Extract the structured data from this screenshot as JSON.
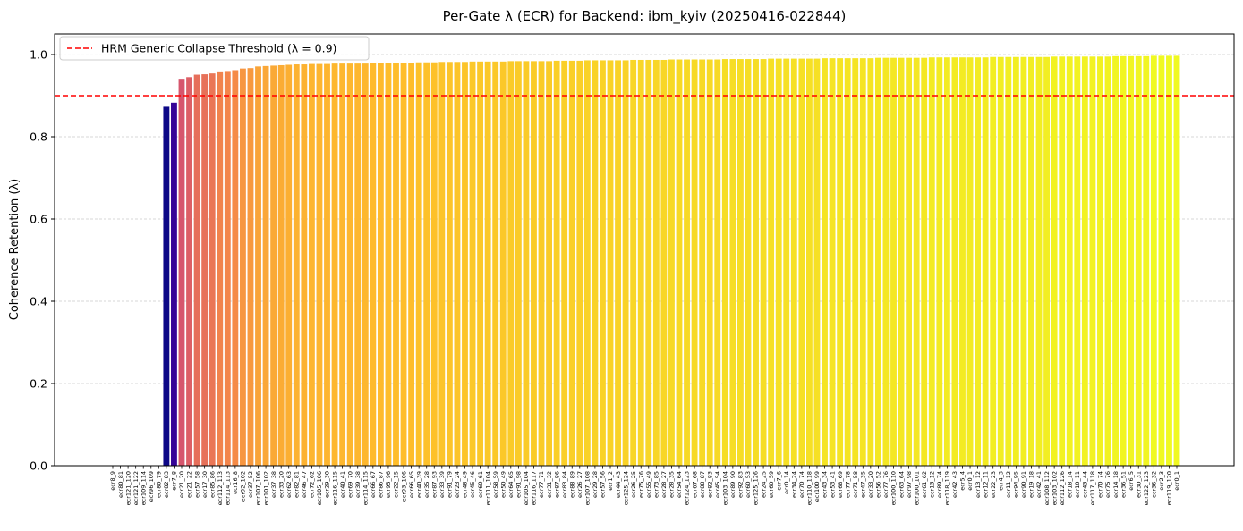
{
  "chart_data": {
    "type": "bar",
    "title": "Per-Gate λ (ECR) for Backend: ibm_kyiv (20250416-022844)",
    "xlabel": "",
    "ylabel": "Coherence Retention (λ)",
    "ylim": [
      0,
      1.05
    ],
    "yticks": [
      0.0,
      0.2,
      0.4,
      0.6,
      0.8,
      1.0
    ],
    "ytick_labels": [
      "0.0",
      "0.2",
      "0.4",
      "0.6",
      "0.8",
      "1.0"
    ],
    "grid": "y-dashed",
    "colormap": "plasma",
    "threshold": {
      "value": 0.9,
      "label": "HRM Generic Collapse Threshold (λ = 0.9)",
      "color": "#ff0000",
      "style": "dashed"
    },
    "legend_placement": "upper-left",
    "categories": [
      "ecr8_9",
      "ecr80_81",
      "ecr121_120",
      "ecr121_122",
      "ecr109_114",
      "ecr96_109",
      "ecr80_79",
      "ecr82_83",
      "ecr7_8",
      "ecr21_20",
      "ecr21_22",
      "ecr57_58",
      "ecr17_30",
      "ecr85_86",
      "ecr112_113",
      "ecr114_113",
      "ecr16_8",
      "ecr92_102",
      "ecr37_52",
      "ecr107_106",
      "ecr101_102",
      "ecr37_38",
      "ecr33_20",
      "ecr62_63",
      "ecr82_81",
      "ecr46_47",
      "ecr72_62",
      "ecr105_106",
      "ecr29_30",
      "ecr116_115",
      "ecr40_41",
      "ecr69_70",
      "ecr39_38",
      "ecr114_115",
      "ecr66_67",
      "ecr86_87",
      "ecr95_96",
      "ecr22_15",
      "ecr93_106",
      "ecr66_65",
      "ecr40_39",
      "ecr35_28",
      "ecr87_93",
      "ecr33_39",
      "ecr91_79",
      "ecr23_24",
      "ecr48_49",
      "ecr45_46",
      "ecr60_61",
      "ecr111_104",
      "ecr58_59",
      "ecr50_49",
      "ecr64_65",
      "ecr91_98",
      "ecr105_104",
      "ecr116_117",
      "ecr77_71",
      "ecr31_32",
      "ecr87_86",
      "ecr83_84",
      "ecr88_89",
      "ecr26_27",
      "ecr107_108",
      "ecr29_28",
      "ecr57_56",
      "ecr1_2",
      "ecr44_43",
      "ecr125_124",
      "ecr26_25",
      "ecr75_76",
      "ecr55_49",
      "ecr73_85",
      "ecr28_27",
      "ecr28_35",
      "ecr54_64",
      "ecr124_123",
      "ecr67_68",
      "ecr88_87",
      "ecr82_83b",
      "ecr45_54",
      "ecr103_104",
      "ecr89_90",
      "ecr92_83",
      "ecr60_53",
      "ecr125_126",
      "ecr24_25",
      "ecr60_59",
      "ecr7_6",
      "ecr0_14",
      "ecr34_24",
      "ecr70_74",
      "ecr110_118",
      "ecr100_99",
      "ecr43_34",
      "ecr53_41",
      "ecr68_69",
      "ecr77_78",
      "ecr71_58",
      "ecr47_35",
      "ecr33_20b",
      "ecr56_52",
      "ecr77_76",
      "ecr100_110",
      "ecr63_64",
      "ecr97_98",
      "ecr100_101",
      "ecr61_62",
      "ecr13_12",
      "ecr89_74",
      "ecr118_119",
      "ecr42_43",
      "ecr5_4",
      "ecr0_1",
      "ecr13_12b",
      "ecr12_11",
      "ecr22_23",
      "ecr4_3",
      "ecr11_12",
      "ecr94_95",
      "ecr90_91",
      "ecr19_18",
      "ecr42_41",
      "ecr108_112",
      "ecr103_102",
      "ecr112_126",
      "ecr18_14",
      "ecr10_11",
      "ecr43_44",
      "ecr117_118",
      "ecr70_74b",
      "ecr75_76b",
      "ecr14_18",
      "ecr36_51",
      "ecr6_5",
      "ecr30_31",
      "ecr122_123",
      "ecr36_32",
      "ecr2_3",
      "ecr119_120",
      "ecr0_1b"
    ],
    "category_labels": [
      "ecr8_9",
      "ecr80_81",
      "ecr121_120",
      "ecr121_122",
      "ecr109_114",
      "ecr96_109",
      "ecr80_79",
      "ecr82_83",
      "ecr7_8",
      "ecr21_20",
      "ecr21_22",
      "ecr57_58",
      "ecr17_30",
      "ecr85_86",
      "ecr112_113",
      "ecr114_113",
      "ecr16_8",
      "ecr92_102",
      "ecr37_52",
      "ecr107_106",
      "ecr101_102",
      "ecr37_38",
      "ecr33_20",
      "ecr62_63",
      "ecr82_81",
      "ecr46_47",
      "ecr72_62",
      "ecr105_106",
      "ecr29_30",
      "ecr116_115",
      "ecr40_41",
      "ecr69_70",
      "ecr39_38",
      "ecr114_115",
      "ecr66_67",
      "ecr86_87",
      "ecr95_96",
      "ecr22_15",
      "ecr93_106",
      "ecr66_65",
      "ecr40_39",
      "ecr35_28",
      "ecr87_93",
      "ecr33_39",
      "ecr91_79",
      "ecr23_24",
      "ecr48_49",
      "ecr45_46",
      "ecr60_61",
      "ecr111_104",
      "ecr58_59",
      "ecr50_49",
      "ecr64_65",
      "ecr91_98",
      "ecr105_104",
      "ecr116_117",
      "ecr77_71",
      "ecr31_32",
      "ecr87_86",
      "ecr83_84",
      "ecr88_89",
      "ecr26_27",
      "ecr107_108",
      "ecr29_28",
      "ecr57_56",
      "ecr1_2",
      "ecr44_43",
      "ecr125_124",
      "ecr26_25",
      "ecr75_76",
      "ecr55_49",
      "ecr73_85",
      "ecr28_27",
      "ecr28_35",
      "ecr54_64",
      "ecr124_123",
      "ecr67_68",
      "ecr88_87",
      "ecr82_83",
      "ecr45_54",
      "ecr103_104",
      "ecr89_90",
      "ecr92_83",
      "ecr60_53",
      "ecr125_126",
      "ecr24_25",
      "ecr60_59",
      "ecr7_6",
      "ecr0_14",
      "ecr34_24",
      "ecr70_74",
      "ecr110_118",
      "ecr100_99",
      "ecr43_34",
      "ecr53_41",
      "ecr68_69",
      "ecr77_78",
      "ecr71_58",
      "ecr47_35",
      "ecr33_20",
      "ecr56_52",
      "ecr77_76",
      "ecr100_110",
      "ecr63_64",
      "ecr97_98",
      "ecr100_101",
      "ecr61_62",
      "ecr13_12",
      "ecr89_74",
      "ecr118_119",
      "ecr42_43",
      "ecr5_4",
      "ecr0_1",
      "ecr13_12",
      "ecr12_11",
      "ecr22_23",
      "ecr4_3",
      "ecr11_12",
      "ecr94_95",
      "ecr90_91",
      "ecr19_18",
      "ecr42_41",
      "ecr108_112",
      "ecr103_102",
      "ecr112_126",
      "ecr18_14",
      "ecr10_11",
      "ecr43_44",
      "ecr117_118",
      "ecr70_74",
      "ecr75_76",
      "ecr14_18",
      "ecr36_51",
      "ecr6_5",
      "ecr30_31",
      "ecr122_123",
      "ecr36_32",
      "ecr2_3",
      "ecr119_120",
      "ecr0_1"
    ],
    "values": [
      0,
      0,
      0,
      0,
      0,
      0,
      0,
      0.873,
      0.883,
      0.941,
      0.945,
      0.951,
      0.952,
      0.954,
      0.959,
      0.96,
      0.962,
      0.966,
      0.967,
      0.971,
      0.972,
      0.973,
      0.974,
      0.975,
      0.976,
      0.976,
      0.977,
      0.977,
      0.977,
      0.978,
      0.978,
      0.978,
      0.978,
      0.978,
      0.979,
      0.979,
      0.98,
      0.98,
      0.98,
      0.98,
      0.981,
      0.981,
      0.981,
      0.982,
      0.982,
      0.982,
      0.982,
      0.983,
      0.983,
      0.983,
      0.983,
      0.983,
      0.984,
      0.984,
      0.984,
      0.984,
      0.984,
      0.984,
      0.985,
      0.985,
      0.985,
      0.985,
      0.986,
      0.986,
      0.986,
      0.986,
      0.986,
      0.986,
      0.987,
      0.987,
      0.987,
      0.987,
      0.987,
      0.988,
      0.988,
      0.988,
      0.988,
      0.988,
      0.988,
      0.988,
      0.989,
      0.989,
      0.989,
      0.989,
      0.989,
      0.989,
      0.99,
      0.99,
      0.99,
      0.99,
      0.99,
      0.99,
      0.99,
      0.991,
      0.991,
      0.991,
      0.991,
      0.991,
      0.991,
      0.991,
      0.992,
      0.992,
      0.992,
      0.992,
      0.992,
      0.992,
      0.992,
      0.993,
      0.993,
      0.993,
      0.993,
      0.993,
      0.993,
      0.993,
      0.993,
      0.994,
      0.994,
      0.994,
      0.994,
      0.994,
      0.994,
      0.994,
      0.994,
      0.995,
      0.995,
      0.995,
      0.995,
      0.995,
      0.995,
      0.995,
      0.995,
      0.996,
      0.996,
      0.996,
      0.996,
      0.996,
      0.997,
      0.997,
      0.997,
      0.997
    ]
  }
}
